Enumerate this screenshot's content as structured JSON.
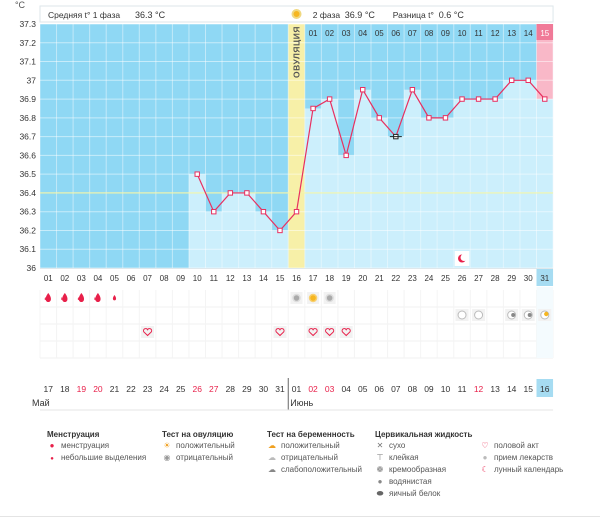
{
  "header": {
    "unit": "°C",
    "phase1_label": "Средняя t° 1 фаза",
    "phase1_value": "36.3 °C",
    "phase2_label": "2 фаза",
    "phase2_value": "36.9 °C",
    "diff_label": "Разница t°",
    "diff_value": "0.6 °C",
    "ovulation_label": "ОВУЛЯЦИЯ"
  },
  "colors": {
    "phase_bg": "#8fd8f4",
    "bar_fill": "#cceffc",
    "line": "#e83060",
    "ovulation": "#f7f0a8",
    "today": "#f9b8c8",
    "coverline": "#f2f5a8",
    "accent_red": "#e8204a"
  },
  "chart_data": {
    "type": "line",
    "title": "",
    "ylabel": "°C",
    "ylim": [
      36.0,
      37.3
    ],
    "yticks": [
      "37.3",
      "37.2",
      "37.1",
      "37",
      "36.9",
      "36.8",
      "36.7",
      "36.6",
      "36.5",
      "36.4",
      "36.3",
      "36.2",
      "36.1",
      "36"
    ],
    "coverline": 36.4,
    "cycle_days": [
      "01",
      "02",
      "03",
      "04",
      "05",
      "06",
      "07",
      "08",
      "09",
      "10",
      "11",
      "12",
      "13",
      "14",
      "15",
      "16",
      "17",
      "18",
      "19",
      "20",
      "21",
      "22",
      "23",
      "24",
      "25",
      "26",
      "27",
      "28",
      "29",
      "30",
      "31"
    ],
    "top_days": [
      "01",
      "02",
      "03",
      "04",
      "05",
      "06",
      "07",
      "08",
      "09",
      "10",
      "11",
      "12",
      "13",
      "14",
      "15"
    ],
    "ovulation_day_index": 15,
    "today_index": 30,
    "dates": [
      "17",
      "18",
      "19",
      "20",
      "21",
      "22",
      "23",
      "24",
      "25",
      "26",
      "27",
      "28",
      "29",
      "30",
      "31",
      "01",
      "02",
      "03",
      "04",
      "05",
      "06",
      "07",
      "08",
      "09",
      "10",
      "11",
      "12",
      "13",
      "14",
      "15",
      "16"
    ],
    "red_date_indices": [
      2,
      3,
      9,
      10,
      16,
      17,
      26
    ],
    "months": [
      {
        "label": "Май",
        "index": 0
      },
      {
        "label": "Июнь",
        "index": 15
      }
    ],
    "values": [
      null,
      null,
      null,
      null,
      null,
      null,
      null,
      null,
      null,
      36.5,
      36.3,
      36.4,
      36.4,
      36.3,
      36.2,
      36.3,
      36.85,
      36.9,
      36.6,
      36.95,
      36.8,
      36.7,
      36.95,
      36.8,
      36.8,
      36.9,
      36.9,
      36.9,
      37.0,
      37.0,
      36.9
    ],
    "row_menstruation": [
      1,
      1,
      1,
      1,
      2,
      0,
      0,
      0,
      0,
      0,
      0,
      0,
      0,
      0,
      0,
      0,
      0,
      0,
      0,
      0,
      0,
      0,
      0,
      0,
      0,
      0,
      0,
      0,
      0,
      0,
      0
    ],
    "row_ovulation_test": [
      0,
      0,
      0,
      0,
      0,
      0,
      0,
      0,
      0,
      0,
      0,
      0,
      0,
      0,
      0,
      2,
      1,
      2,
      0,
      0,
      0,
      0,
      0,
      0,
      0,
      0,
      0,
      0,
      0,
      0,
      0
    ],
    "row_pregnancy_test": [
      0,
      0,
      0,
      0,
      0,
      0,
      0,
      0,
      0,
      0,
      0,
      0,
      0,
      0,
      0,
      0,
      0,
      0,
      0,
      0,
      0,
      0,
      0,
      0,
      0,
      1,
      1,
      0,
      3,
      3,
      4
    ],
    "row_intercourse": [
      0,
      0,
      0,
      0,
      0,
      0,
      1,
      0,
      0,
      0,
      0,
      0,
      0,
      0,
      1,
      0,
      1,
      1,
      1,
      0,
      0,
      0,
      0,
      0,
      0,
      0,
      0,
      0,
      0,
      0,
      0
    ],
    "moon_index": 25
  },
  "legend": {
    "menstruation": {
      "title": "Менструация",
      "items": [
        "менструация",
        "небольшие выделения"
      ]
    },
    "ovulation_test": {
      "title": "Тест на овуляцию",
      "items": [
        "положительный",
        "отрицательный"
      ]
    },
    "pregnancy_test": {
      "title": "Тест на беременность",
      "items": [
        "положительный",
        "отрицательный",
        "слабоположительный"
      ]
    },
    "cervical": {
      "title": "Цервикальная жидкость",
      "items": [
        "сухо",
        "клейкая",
        "кремообразная",
        "водянистая",
        "яичный белок"
      ]
    },
    "other": {
      "items": [
        "половой акт",
        "прием лекарств",
        "лунный календарь"
      ]
    }
  },
  "icons": {
    "menstruation": "drop-icon",
    "ovulation_test": "sun-icon",
    "pregnancy_test": "cloud-icon",
    "intercourse": "heart-icon",
    "moon": "moon-icon"
  }
}
